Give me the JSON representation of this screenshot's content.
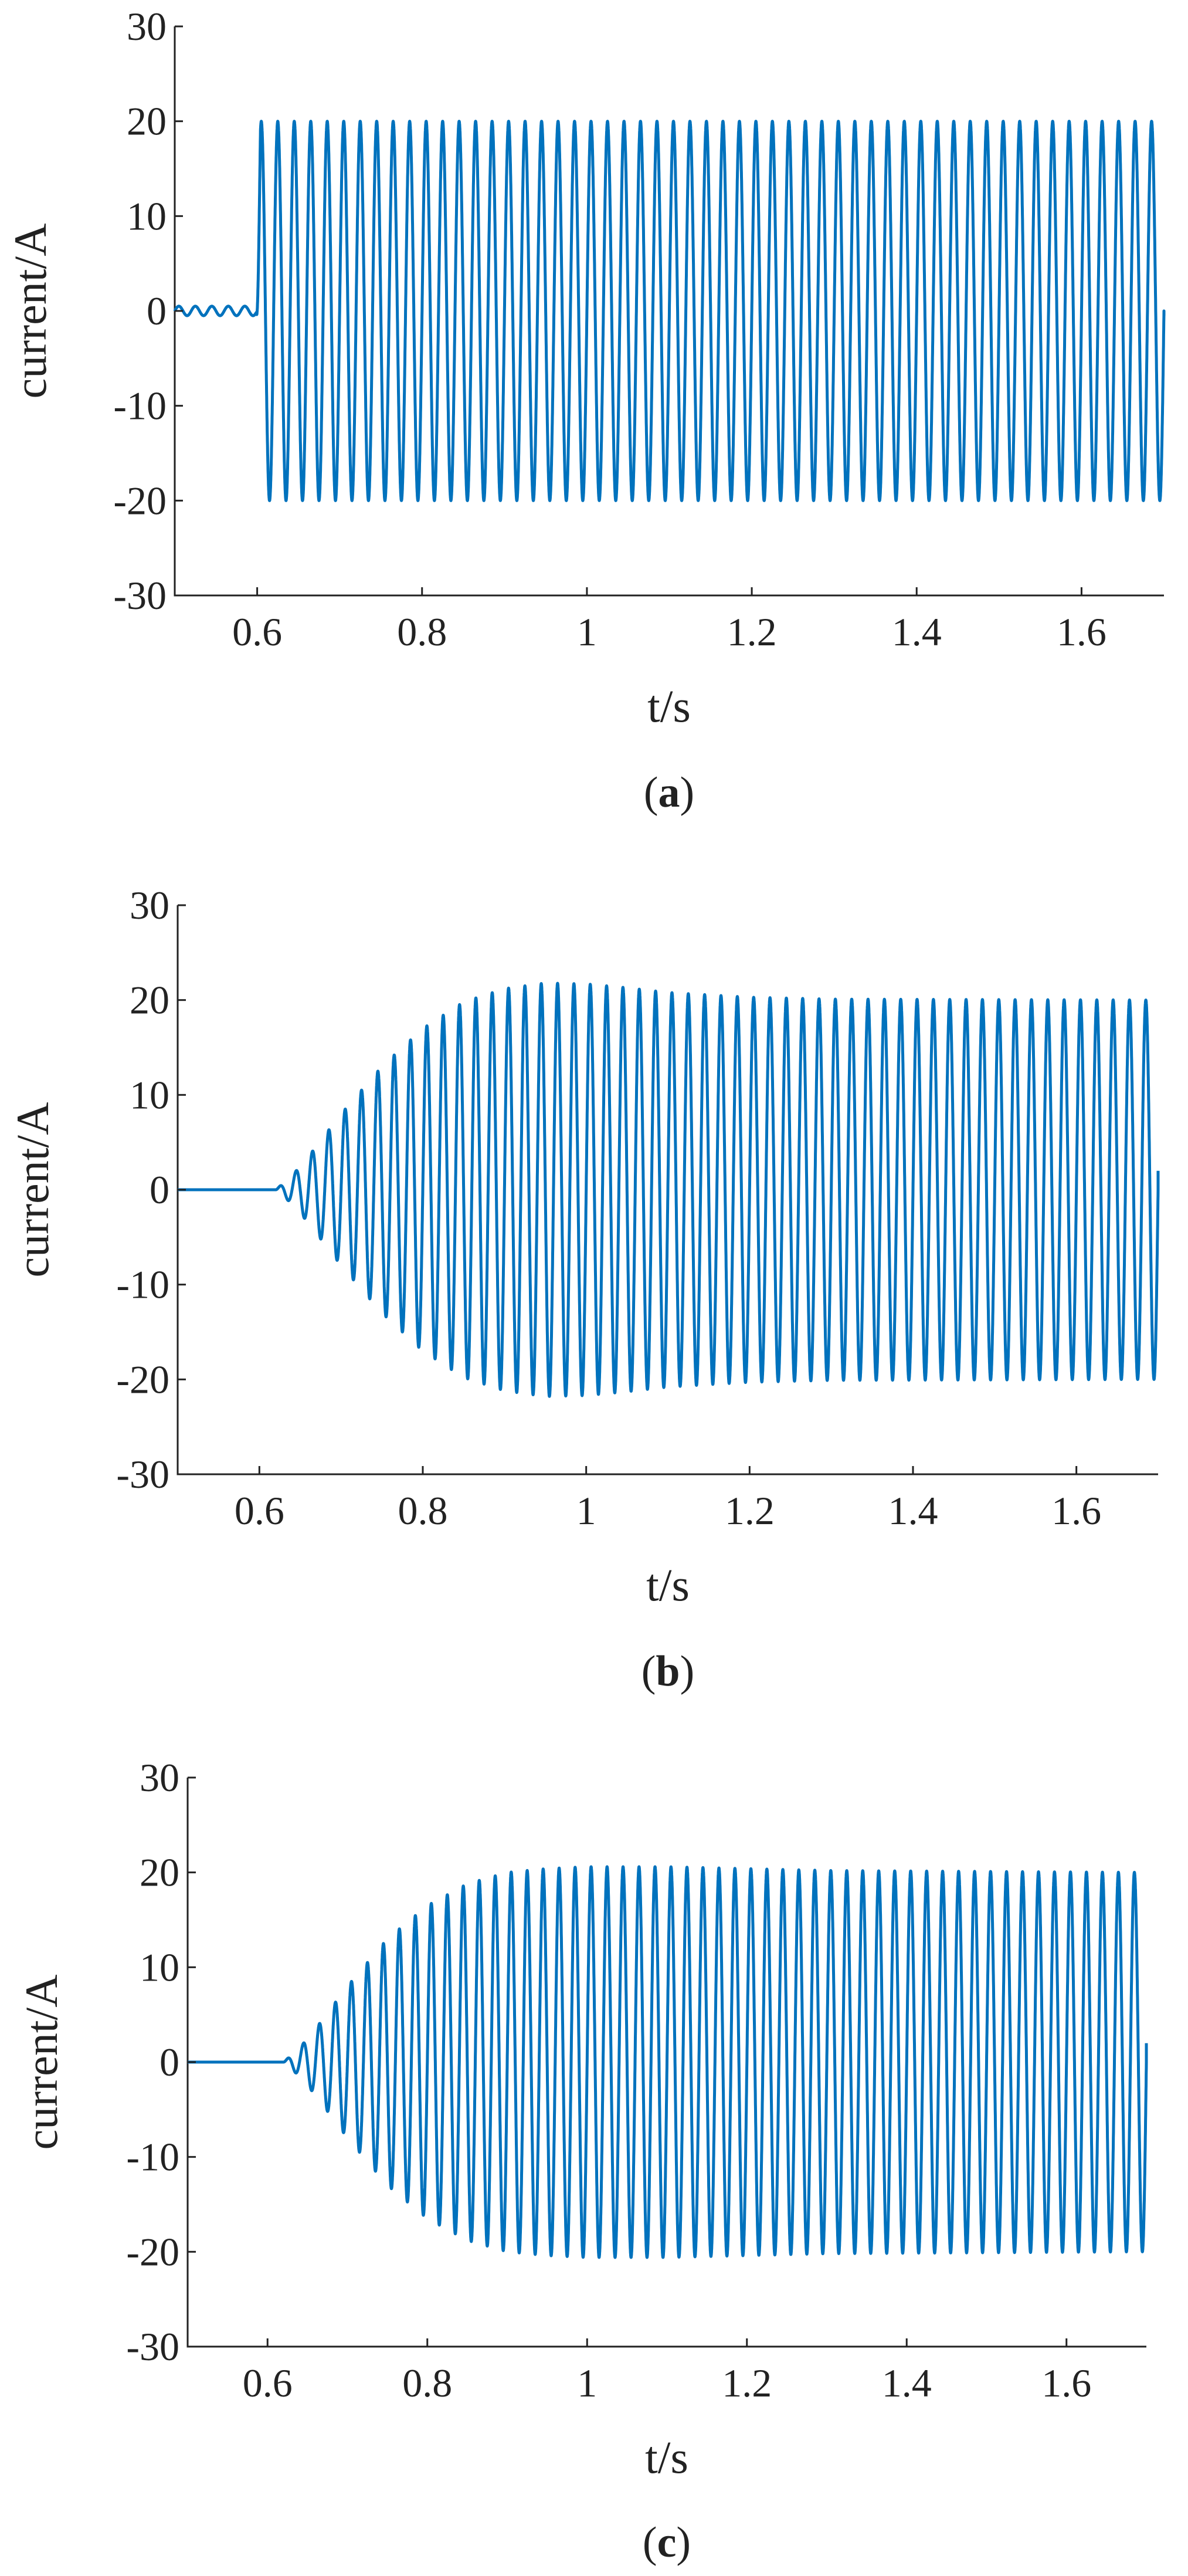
{
  "colors": {
    "signal": "#0072BD",
    "axis": "#222222"
  },
  "chart_data": [
    {
      "type": "line",
      "caption_letter": "a",
      "xlabel": "t/s",
      "ylabel": "current/A",
      "xlim": [
        0.5,
        1.7
      ],
      "ylim": [
        -30,
        30
      ],
      "xticks": [
        0.6,
        0.8,
        1,
        1.2,
        1.4,
        1.6
      ],
      "xtick_labels": [
        "0.6",
        "0.8",
        "1",
        "1.2",
        "1.4",
        "1.6"
      ],
      "yticks": [
        -30,
        -20,
        -10,
        0,
        10,
        20,
        30
      ],
      "ytick_labels": [
        "-30",
        "-20",
        "-10",
        "0",
        "10",
        "20",
        "30"
      ],
      "grid": false,
      "series": [
        {
          "frequency_hz": 50,
          "envelope": [
            [
              0.5,
              0.5
            ],
            [
              0.599,
              0.5
            ],
            [
              0.604,
              20
            ],
            [
              1.7,
              20
            ]
          ],
          "end": [
            1.7,
            -0.5
          ]
        }
      ]
    },
    {
      "type": "line",
      "caption_letter": "b",
      "xlabel": "t/s",
      "ylabel": "current/A",
      "xlim": [
        0.5,
        1.7
      ],
      "ylim": [
        -30,
        30
      ],
      "xticks": [
        0.6,
        0.8,
        1,
        1.2,
        1.4,
        1.6
      ],
      "xtick_labels": [
        "0.6",
        "0.8",
        "1",
        "1.2",
        "1.4",
        "1.6"
      ],
      "yticks": [
        -30,
        -20,
        -10,
        0,
        10,
        20,
        30
      ],
      "ytick_labels": [
        "-30",
        "-20",
        "-10",
        "0",
        "10",
        "20",
        "30"
      ],
      "grid": false,
      "series": [
        {
          "frequency_hz": 50,
          "envelope": [
            [
              0.5,
              0
            ],
            [
              0.62,
              0
            ],
            [
              0.64,
              1.5
            ],
            [
              0.66,
              3.5
            ],
            [
              0.7,
              8
            ],
            [
              0.75,
              13
            ],
            [
              0.8,
              17
            ],
            [
              0.85,
              19.8
            ],
            [
              0.9,
              21.2
            ],
            [
              0.95,
              21.8
            ],
            [
              1.0,
              21.7
            ],
            [
              1.05,
              21.3
            ],
            [
              1.1,
              20.8
            ],
            [
              1.2,
              20.3
            ],
            [
              1.3,
              20.1
            ],
            [
              1.7,
              20
            ]
          ],
          "end": [
            1.7,
            2
          ]
        }
      ]
    },
    {
      "type": "line",
      "caption_letter": "c",
      "xlabel": "t/s",
      "ylabel": "current/A",
      "xlim": [
        0.5,
        1.7
      ],
      "ylim": [
        -30,
        30
      ],
      "xticks": [
        0.6,
        0.8,
        1,
        1.2,
        1.4,
        1.6
      ],
      "xtick_labels": [
        "0.6",
        "0.8",
        "1",
        "1.2",
        "1.4",
        "1.6"
      ],
      "yticks": [
        -30,
        -20,
        -10,
        0,
        10,
        20,
        30
      ],
      "ytick_labels": [
        "-30",
        "-20",
        "-10",
        "0",
        "10",
        "20",
        "30"
      ],
      "grid": false,
      "series": [
        {
          "frequency_hz": 50,
          "envelope": [
            [
              0.5,
              0
            ],
            [
              0.62,
              0
            ],
            [
              0.64,
              1.5
            ],
            [
              0.66,
              3.5
            ],
            [
              0.7,
              8
            ],
            [
              0.75,
              13
            ],
            [
              0.8,
              16.5
            ],
            [
              0.85,
              18.8
            ],
            [
              0.9,
              20
            ],
            [
              0.95,
              20.4
            ],
            [
              1.0,
              20.6
            ],
            [
              1.1,
              20.6
            ],
            [
              1.2,
              20.4
            ],
            [
              1.3,
              20.2
            ],
            [
              1.7,
              20
            ]
          ],
          "end": [
            1.7,
            2
          ]
        }
      ]
    }
  ]
}
